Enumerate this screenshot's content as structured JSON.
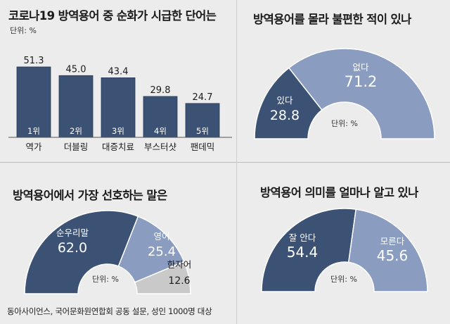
{
  "footer": "동아사이언스, 국어문화원연합회 공동 설문, 성인 1000명 대상",
  "colors": {
    "dark": "#3c5275",
    "light": "#8a9cbf",
    "gray": "#c9c9c9",
    "bg": "#ececec"
  },
  "chart_data": [
    {
      "type": "bar",
      "title": "코로나19 방역용어 중 순화가 시급한 단어는",
      "unit": "단위: %",
      "categories": [
        "역가",
        "더블링",
        "대증치료",
        "부스터샷",
        "팬데믹"
      ],
      "ranks": [
        "1위",
        "2위",
        "3위",
        "4위",
        "5위"
      ],
      "values": [
        51.3,
        45.0,
        43.4,
        29.8,
        24.7
      ],
      "labels": [
        "51.3",
        "45.0",
        "43.4",
        "29.8",
        "24.7"
      ],
      "ylim": [
        0,
        60
      ]
    },
    {
      "type": "pie",
      "subtype": "half-donut",
      "title": "방역용어를 몰라 불편한 적이 있나",
      "unit": "단위: %",
      "slices": [
        {
          "label": "있다",
          "value": 28.8,
          "value_label": "28.8",
          "color": "dark"
        },
        {
          "label": "없다",
          "value": 71.2,
          "value_label": "71.2",
          "color": "light"
        }
      ]
    },
    {
      "type": "pie",
      "subtype": "half-donut",
      "title": "방역용어에서 가장 선호하는 말은",
      "unit": "단위: %",
      "slices": [
        {
          "label": "순우리말",
          "value": 62.0,
          "value_label": "62.0",
          "color": "dark"
        },
        {
          "label": "영어",
          "value": 25.4,
          "value_label": "25.4",
          "color": "light"
        },
        {
          "label": "한자어",
          "value": 12.6,
          "value_label": "12.6",
          "color": "gray"
        }
      ]
    },
    {
      "type": "pie",
      "subtype": "half-donut",
      "title": "방역용어 의미를 얼마나 알고 있나",
      "unit": "단위: %",
      "slices": [
        {
          "label": "잘 안다",
          "value": 54.4,
          "value_label": "54.4",
          "color": "dark"
        },
        {
          "label": "모른다",
          "value": 45.6,
          "value_label": "45.6",
          "color": "light"
        }
      ]
    }
  ]
}
